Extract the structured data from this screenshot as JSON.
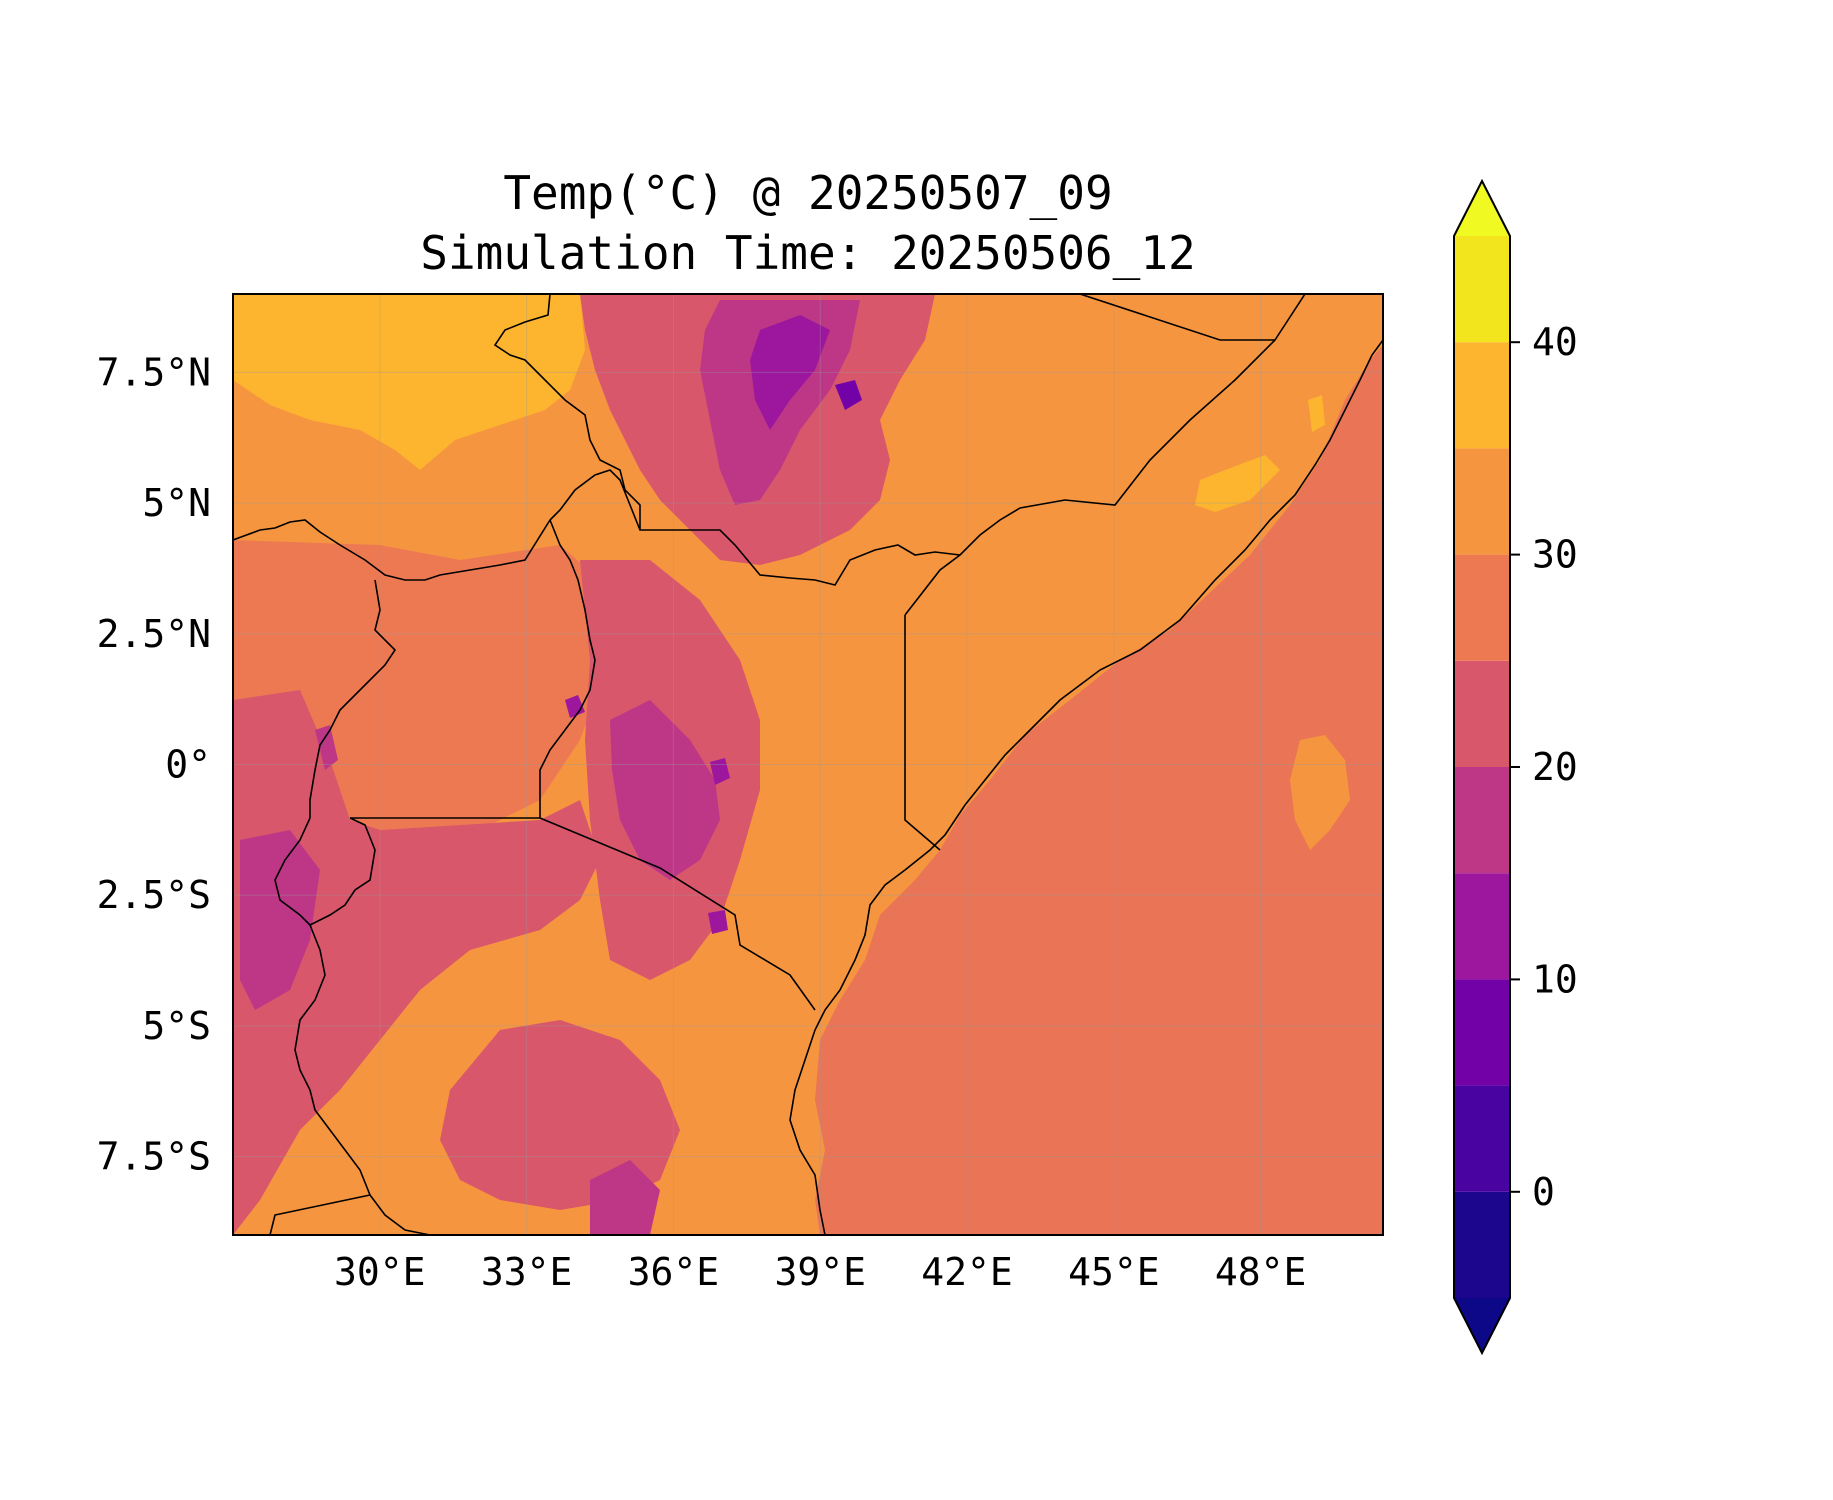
{
  "title_lines": [
    "Temp(°C) @ 20250507_09",
    "Simulation Time: 20250506_12"
  ],
  "map": {
    "lon_range": [
      27.0,
      50.5
    ],
    "lat_range": [
      -9.0,
      9.0
    ],
    "x_ticks": [
      {
        "value": 30,
        "label": "30°E"
      },
      {
        "value": 33,
        "label": "33°E"
      },
      {
        "value": 36,
        "label": "36°E"
      },
      {
        "value": 39,
        "label": "39°E"
      },
      {
        "value": 42,
        "label": "42°E"
      },
      {
        "value": 45,
        "label": "45°E"
      },
      {
        "value": 48,
        "label": "48°E"
      }
    ],
    "y_ticks": [
      {
        "value": 7.5,
        "label": "7.5°N"
      },
      {
        "value": 5,
        "label": "5°N"
      },
      {
        "value": 2.5,
        "label": "2.5°N"
      },
      {
        "value": 0,
        "label": "0°"
      },
      {
        "value": -2.5,
        "label": "2.5°S"
      },
      {
        "value": -5,
        "label": "5°S"
      },
      {
        "value": -7.5,
        "label": "7.5°S"
      }
    ],
    "gridlines": true,
    "ocean_color": "#e97456",
    "background_color": "#f69540"
  },
  "colorbar": {
    "levels": [
      -5,
      0,
      5,
      10,
      15,
      20,
      25,
      30,
      35,
      40,
      45
    ],
    "colors": [
      "#1b068d",
      "#4903a0",
      "#7201a8",
      "#9c179e",
      "#bd3786",
      "#d8576b",
      "#ed7953",
      "#f69540",
      "#fdb42f",
      "#f2e51d"
    ],
    "under_color": "#0d0887",
    "over_color": "#f0f921",
    "ticks": [
      {
        "value": 0,
        "label": "0"
      },
      {
        "value": 10,
        "label": "10"
      },
      {
        "value": 20,
        "label": "20"
      },
      {
        "value": 30,
        "label": "30"
      },
      {
        "value": 40,
        "label": "40"
      }
    ],
    "extend": "both"
  }
}
